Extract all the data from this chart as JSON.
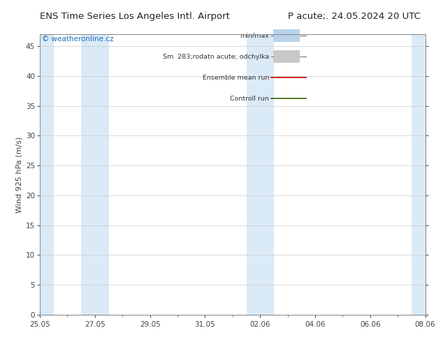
{
  "title_left": "ENS Time Series Los Angeles Intl. Airport",
  "title_right": "P acute;. 24.05.2024 20 UTC",
  "ylabel": "Wind 925 hPa (m/s)",
  "watermark": "© weatheronline.cz",
  "xlim_start": 0,
  "xlim_end": 14,
  "ylim": [
    0,
    47
  ],
  "yticks": [
    0,
    5,
    10,
    15,
    20,
    25,
    30,
    35,
    40,
    45
  ],
  "xtick_labels": [
    "25.05",
    "27.05",
    "29.05",
    "31.05",
    "02.06",
    "04.06",
    "06.06",
    "08.06"
  ],
  "xtick_positions": [
    0,
    2,
    4,
    6,
    8,
    10,
    12,
    14
  ],
  "bg_color": "#ffffff",
  "plot_bg_color": "#ffffff",
  "shaded_bands": [
    {
      "x_start": 0,
      "x_end": 0.5,
      "color": "#daeaf7"
    },
    {
      "x_start": 1.5,
      "x_end": 2.5,
      "color": "#daeaf7"
    },
    {
      "x_start": 7.5,
      "x_end": 8.5,
      "color": "#daeaf7"
    },
    {
      "x_start": 13.5,
      "x_end": 14.0,
      "color": "#daeaf7"
    }
  ],
  "legend_items": [
    {
      "label": "min/max",
      "color": "#b8d4eb",
      "type": "band"
    },
    {
      "label": "Sm  283;rodatn acute; odchylka",
      "color": "#c8c8c8",
      "type": "band"
    },
    {
      "label": "Ensemble mean run",
      "color": "#cc0000",
      "type": "line"
    },
    {
      "label": "Controll run",
      "color": "#336600",
      "type": "line"
    }
  ],
  "tick_color": "#444444",
  "title_fontsize": 9.5,
  "axis_label_fontsize": 8,
  "tick_fontsize": 7.5,
  "watermark_color": "#1a6fbf",
  "grid_color": "#cccccc",
  "border_color": "#888888"
}
